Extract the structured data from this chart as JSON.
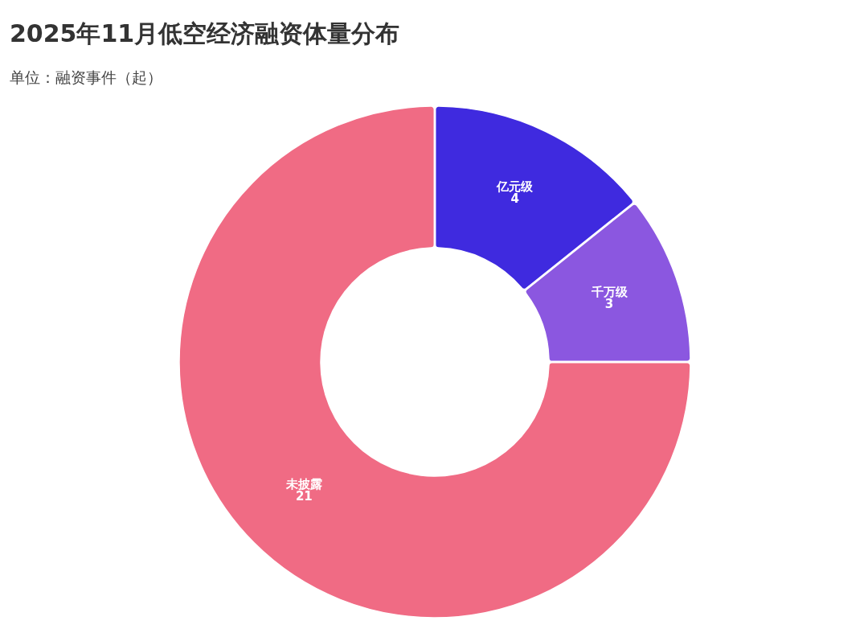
{
  "chart_data": {
    "type": "donut",
    "title": "2025年11月低空经济融资体量分布",
    "subtitle": "单位：融资事件（起）",
    "categories": [
      "亿元级",
      "千万级",
      "未披露"
    ],
    "values": [
      4,
      3,
      21
    ],
    "colors": [
      "#3f2adf",
      "#8b57e0",
      "#f06b84"
    ],
    "data_labels": true,
    "legend": false
  }
}
